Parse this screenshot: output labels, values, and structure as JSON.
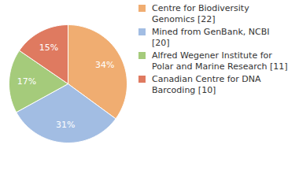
{
  "chart_data": {
    "type": "pie",
    "categories": [
      "Centre for Biodiversity Genomics [22]",
      "Mined from GenBank, NCBI [20]",
      "Alfred Wegener Institute for Polar and Marine Research [11]",
      "Canadian Centre for DNA Barcoding [10]"
    ],
    "values": [
      34,
      31,
      17,
      15
    ],
    "value_labels": [
      "34%",
      "31%",
      "17%",
      "15%"
    ],
    "colors": [
      "#f0ad71",
      "#a2bde3",
      "#a5cb7b",
      "#df7a60"
    ],
    "data_labels": true,
    "legend": "right"
  }
}
